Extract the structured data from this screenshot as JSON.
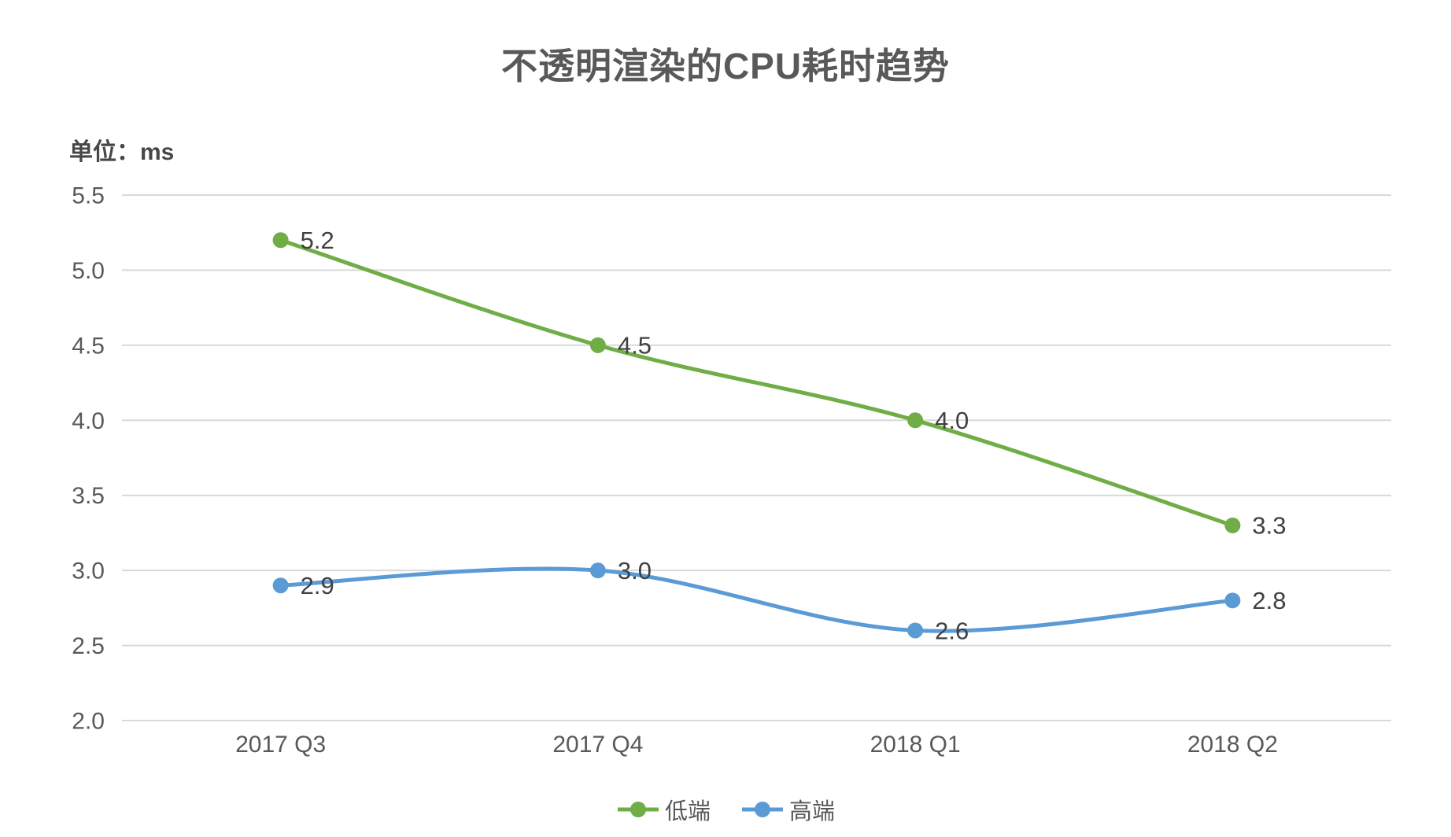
{
  "chart_data": {
    "type": "line",
    "title": "不透明渲染的CPU耗时趋势",
    "unit_label": "单位：ms",
    "categories": [
      "2017 Q3",
      "2017 Q4",
      "2018 Q1",
      "2018 Q2"
    ],
    "series": [
      {
        "name": "低端",
        "color": "#70AD47",
        "values": [
          5.2,
          4.5,
          4.0,
          3.3
        ],
        "labels": [
          "5.2",
          "4.5",
          "4.0",
          "3.3"
        ]
      },
      {
        "name": "高端",
        "color": "#5B9BD5",
        "values": [
          2.9,
          3.0,
          2.6,
          2.8
        ],
        "labels": [
          "2.9",
          "3.0",
          "2.6",
          "2.8"
        ]
      }
    ],
    "y_axis": {
      "min": 2.0,
      "max": 5.5,
      "step": 0.5,
      "tick_labels": [
        "5.5",
        "5.0",
        "4.5",
        "4.0",
        "3.5",
        "3.0",
        "2.5",
        "2.0"
      ]
    },
    "xlabel": "",
    "ylabel": "单位：ms",
    "grid": true,
    "smooth_lines": true,
    "legend_position": "bottom",
    "colors": {
      "gridline": "#D9D9D9",
      "axis_text": "#595959",
      "data_label_text": "#404040",
      "title_text": "#595959",
      "background": "#FFFFFF"
    }
  }
}
